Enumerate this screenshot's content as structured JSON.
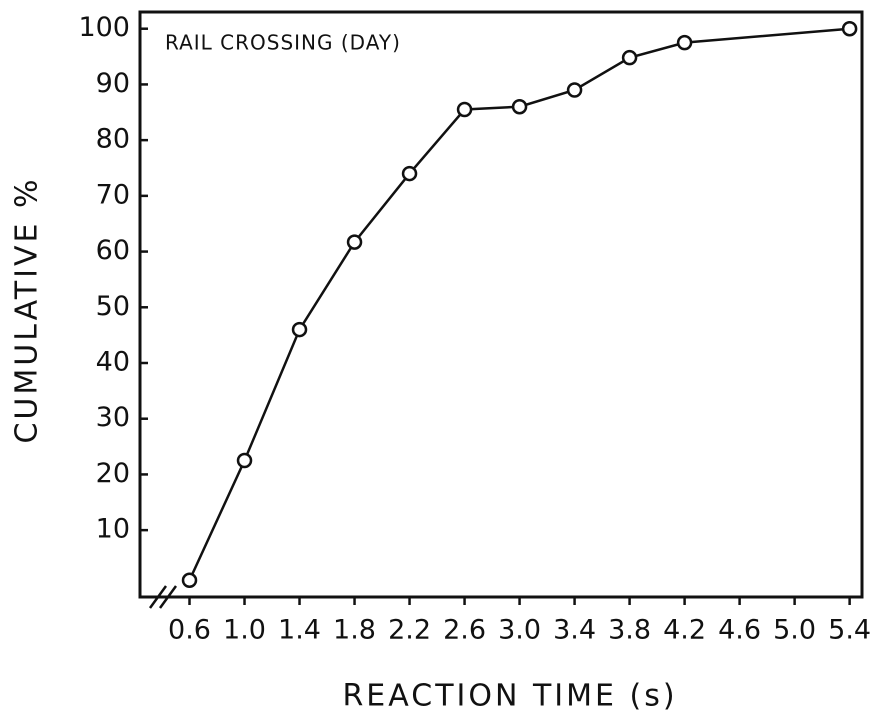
{
  "chart_data": {
    "type": "line",
    "annotation": "RAIL CROSSING (DAY)",
    "x_label": "REACTION TIME (s)",
    "y_label": "CUMULATIVE %",
    "x": [
      0.6,
      1.0,
      1.4,
      1.8,
      2.2,
      2.6,
      3.0,
      3.4,
      3.8,
      4.2,
      5.4
    ],
    "series": [
      {
        "color": "#111111",
        "values": [
          1,
          22.5,
          46,
          61.7,
          74,
          85.5,
          86,
          89,
          94.8,
          97.5,
          100
        ]
      }
    ],
    "xlim": [
      0.24,
      5.49
    ],
    "ylim": [
      -2,
      103
    ],
    "xticks": [
      0.6,
      {
        "value": 1,
        "label": "1.0"
      },
      1.4,
      1.8,
      2.2,
      2.6,
      {
        "value": 3,
        "label": "3.0"
      },
      3.4,
      3.8,
      4.2,
      4.6,
      {
        "value": 5,
        "label": "5.0"
      },
      5.4
    ],
    "yticks": [
      10,
      20,
      30,
      40,
      50,
      60,
      70,
      80,
      90,
      100
    ]
  }
}
